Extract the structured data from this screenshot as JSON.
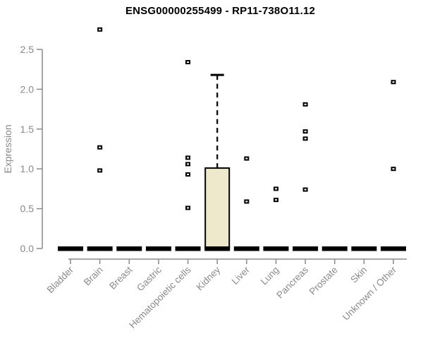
{
  "chart_data": {
    "type": "boxplot",
    "title": "ENSG00000255499 - RP11-738O11.12",
    "ylabel": "Expression",
    "xlabel": "",
    "ylim": [
      0,
      2.8
    ],
    "yticks": [
      0.0,
      0.5,
      1.0,
      1.5,
      2.0,
      2.5
    ],
    "grid": false,
    "legend": "none",
    "categories": [
      "Bladder",
      "Brain",
      "Breast",
      "Gastric",
      "Hematopoietic cells",
      "Kidney",
      "Liver",
      "Lung",
      "Pancreas",
      "Prostate",
      "Skin",
      "Unknown / Other"
    ],
    "boxes": [
      {
        "category": "Bladder",
        "median": 0,
        "q1": 0,
        "q3": 0,
        "whisker_low": 0,
        "whisker_high": 0,
        "outliers": []
      },
      {
        "category": "Brain",
        "median": 0,
        "q1": 0,
        "q3": 0,
        "whisker_low": 0,
        "whisker_high": 0,
        "outliers": [
          2.75,
          1.27,
          0.98
        ]
      },
      {
        "category": "Breast",
        "median": 0,
        "q1": 0,
        "q3": 0,
        "whisker_low": 0,
        "whisker_high": 0,
        "outliers": []
      },
      {
        "category": "Gastric",
        "median": 0,
        "q1": 0,
        "q3": 0,
        "whisker_low": 0,
        "whisker_high": 0,
        "outliers": []
      },
      {
        "category": "Hematopoietic cells",
        "median": 0,
        "q1": 0,
        "q3": 0,
        "whisker_low": 0,
        "whisker_high": 0,
        "outliers": [
          2.34,
          1.14,
          1.06,
          0.93,
          0.51
        ]
      },
      {
        "category": "Kidney",
        "median": 0,
        "q1": 0,
        "q3": 1.01,
        "whisker_low": 0,
        "whisker_high": 2.18,
        "outliers": []
      },
      {
        "category": "Liver",
        "median": 0,
        "q1": 0,
        "q3": 0,
        "whisker_low": 0,
        "whisker_high": 0,
        "outliers": [
          1.13,
          0.59
        ]
      },
      {
        "category": "Lung",
        "median": 0,
        "q1": 0,
        "q3": 0,
        "whisker_low": 0,
        "whisker_high": 0,
        "outliers": [
          0.75,
          0.61
        ]
      },
      {
        "category": "Pancreas",
        "median": 0,
        "q1": 0,
        "q3": 0,
        "whisker_low": 0,
        "whisker_high": 0,
        "outliers": [
          1.81,
          1.47,
          1.38,
          0.74
        ]
      },
      {
        "category": "Prostate",
        "median": 0,
        "q1": 0,
        "q3": 0,
        "whisker_low": 0,
        "whisker_high": 0,
        "outliers": []
      },
      {
        "category": "Skin",
        "median": 0,
        "q1": 0,
        "q3": 0,
        "whisker_low": 0,
        "whisker_high": 0,
        "outliers": []
      },
      {
        "category": "Unknown / Other",
        "median": 0,
        "q1": 0,
        "q3": 0,
        "whisker_low": 0,
        "whisker_high": 0,
        "outliers": [
          2.09,
          1.0
        ]
      }
    ],
    "colors": {
      "box_fill": "#EEE8CD",
      "box_border": "#000000",
      "axis": "#8A8A8A",
      "tick_label": "#8A8A8A",
      "title": "#000000",
      "point": "#000000",
      "background": "#FFFFFF"
    }
  }
}
